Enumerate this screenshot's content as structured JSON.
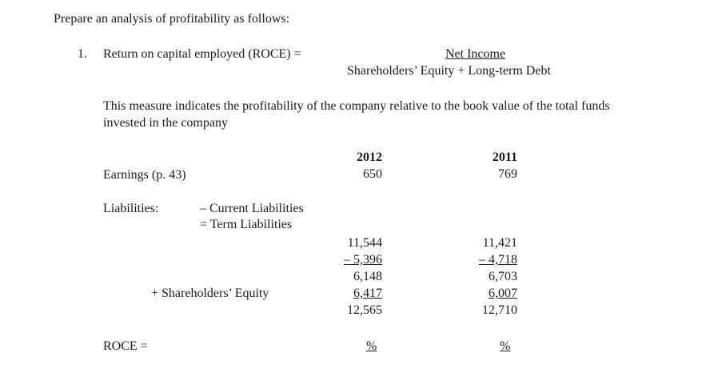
{
  "intro": "Prepare an analysis of profitability as follows:",
  "item": {
    "number": "1.",
    "label": "Return on capital employed (ROCE) =",
    "numerator": "Net Income",
    "denominator": "Shareholders’ Equity + Long-term Debt"
  },
  "description": {
    "line1": "This measure indicates the profitability of the company relative to the book value of the total funds",
    "line2": "invested in the company"
  },
  "columns": {
    "y2012": "2012",
    "y2011": "2011"
  },
  "earnings": {
    "label": "Earnings (p. 43)",
    "v2012": "650",
    "v2011": "769"
  },
  "liabilities": {
    "label": "Liabilities:",
    "minus_current": "– Current Liabilities",
    "eq_term": "= Term Liabilities"
  },
  "calc_2012": [
    "11,544",
    "– 5,396",
    "6,148",
    "6,417",
    "12,565"
  ],
  "calc_2011": [
    "11,421",
    "– 4,718",
    "6,703",
    "6,007",
    "12,710"
  ],
  "equity_label": "+ Shareholders’ Equity",
  "roce": {
    "label": "ROCE =",
    "pct2012": "%",
    "pct2011": "%"
  }
}
